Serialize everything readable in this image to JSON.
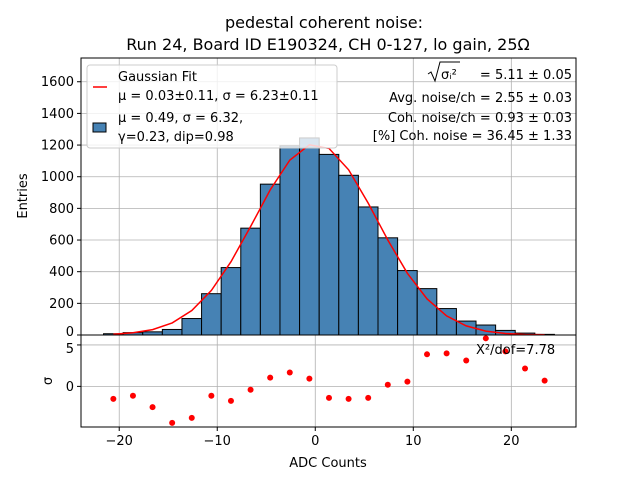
{
  "chart_data": [
    {
      "type": "bar",
      "title": [
        "pedestal coherent noise:",
        "Run 24, Board ID E190324, CH 0-127, lo gain, 25Ω"
      ],
      "xlabel": "ADC Counts",
      "ylabel": "Entries",
      "xlim": [
        -23.9,
        26.6
      ],
      "ylim": [
        0,
        1750
      ],
      "grid": true,
      "bin_width": 2,
      "bin_centers": [
        -20.6,
        -18.6,
        -16.6,
        -14.6,
        -12.6,
        -10.6,
        -8.6,
        -6.6,
        -4.6,
        -2.6,
        -0.6,
        1.4,
        3.4,
        5.4,
        7.4,
        9.4,
        11.4,
        13.4,
        15.4,
        17.4,
        19.4,
        21.4,
        23.4
      ],
      "values": [
        8,
        15,
        20,
        35,
        104,
        261,
        426,
        675,
        953,
        1195,
        1245,
        1141,
        1009,
        809,
        614,
        407,
        293,
        167,
        88,
        63,
        29,
        12,
        4
      ],
      "bar_color": "#4682b4",
      "fit": {
        "type": "gaussian",
        "mu": 0.03,
        "sigma": 6.23,
        "amplitude": 1208,
        "color": "#ff0000"
      },
      "yticks": [
        0,
        200,
        400,
        600,
        800,
        1000,
        1200,
        1400,
        1600
      ],
      "xticks": [
        -20,
        -10,
        0,
        10,
        20
      ],
      "legend": {
        "placement": "top-left",
        "entries": [
          {
            "lines": [
              "Gaussian Fit",
              "μ = 0.03±0.11, σ = 6.23±0.11"
            ]
          },
          {
            "lines": [
              "μ = 0.49, σ = 6.32,",
              "γ=0.23, dip=0.98"
            ]
          }
        ]
      },
      "annotations": [
        {
          "label": "σᵢ²",
          "value": "= 5.11 ± 0.05"
        },
        {
          "label": "",
          "value": "Avg. noise/ch = 2.55 ± 0.03"
        },
        {
          "label": "",
          "value": "Coh. noise/ch = 0.93 ± 0.03"
        },
        {
          "label": "",
          "value": "[%] Coh. noise = 36.45  ± 1.33"
        }
      ]
    },
    {
      "type": "scatter",
      "xlabel": "ADC Counts",
      "ylabel": "σ",
      "xlim": [
        -23.9,
        26.6
      ],
      "ylim": [
        -4.9,
        6.2
      ],
      "grid": true,
      "x": [
        -20.6,
        -18.6,
        -16.6,
        -14.6,
        -12.6,
        -10.6,
        -8.6,
        -6.6,
        -4.6,
        -2.6,
        -0.6,
        1.4,
        3.4,
        5.4,
        7.4,
        9.4,
        11.4,
        13.4,
        15.4,
        17.4,
        19.4,
        21.4,
        23.4
      ],
      "y": [
        -1.5,
        -1.13,
        -2.5,
        -4.4,
        -3.8,
        -1.13,
        -1.75,
        -0.4,
        1.06,
        1.67,
        0.94,
        -1.38,
        -1.5,
        -1.38,
        0.2,
        0.57,
        3.87,
        3.99,
        3.13,
        5.8,
        4.23,
        2.16,
        0.7
      ],
      "point_color": "#ff0000",
      "yticks": [
        0,
        5
      ],
      "xticks": [
        -20,
        -10,
        0,
        10,
        20
      ],
      "annotation": "X²/dof=7.78"
    }
  ]
}
